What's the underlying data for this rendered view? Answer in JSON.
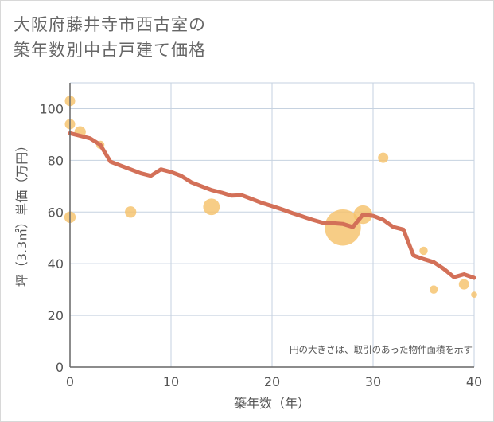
{
  "chart_data": {
    "type": "scatter",
    "title_lines": [
      "大阪府藤井寺市西古室の",
      "築年数別中古戸建て価格"
    ],
    "xlabel": "築年数（年）",
    "ylabel": "坪（3.3㎡）単価（万円）",
    "xlim": [
      0,
      40
    ],
    "ylim": [
      0,
      110
    ],
    "xticks": [
      0,
      10,
      20,
      30,
      40
    ],
    "yticks": [
      0,
      20,
      40,
      60,
      80,
      100
    ],
    "grid": true,
    "note": "円の大きさは、取引のあった物件面積を示す",
    "colors": {
      "bubble": "#f5c26b",
      "line": "#d37058",
      "grid": "#c6d2e0",
      "axis": "#666666"
    },
    "bubbles": [
      {
        "x": 0,
        "y": 103,
        "size": 1
      },
      {
        "x": 0,
        "y": 94,
        "size": 1
      },
      {
        "x": 0,
        "y": 58,
        "size": 1.1
      },
      {
        "x": 1,
        "y": 91,
        "size": 1.1
      },
      {
        "x": 3,
        "y": 86,
        "size": 0.8
      },
      {
        "x": 6,
        "y": 60,
        "size": 1.1
      },
      {
        "x": 14,
        "y": 62,
        "size": 1.6
      },
      {
        "x": 27,
        "y": 54,
        "size": 3.5
      },
      {
        "x": 29,
        "y": 59,
        "size": 1.8
      },
      {
        "x": 31,
        "y": 81,
        "size": 1
      },
      {
        "x": 35,
        "y": 45,
        "size": 0.8
      },
      {
        "x": 36,
        "y": 30,
        "size": 0.8
      },
      {
        "x": 39,
        "y": 32,
        "size": 1
      },
      {
        "x": 40,
        "y": 28,
        "size": 0.6
      }
    ],
    "trend": {
      "x": [
        0,
        1,
        2,
        3,
        4,
        5,
        6,
        7,
        8,
        9,
        10,
        11,
        12,
        13,
        14,
        15,
        16,
        17,
        18,
        19,
        20,
        21,
        22,
        23,
        24,
        25,
        26,
        27,
        28,
        29,
        30,
        31,
        32,
        33,
        34,
        35,
        36,
        37,
        38,
        39,
        40
      ],
      "y": [
        90.5,
        89.5,
        88.5,
        86,
        79.5,
        78,
        76.5,
        75,
        74,
        76.5,
        75.5,
        74,
        71.5,
        70,
        68.5,
        67.5,
        66.3,
        66.5,
        65,
        63.5,
        62.3,
        61,
        59.6,
        58.3,
        57,
        55.9,
        55.7,
        55.4,
        54.2,
        59,
        58.5,
        57,
        54.2,
        53.2,
        43.2,
        41.8,
        40.6,
        38,
        34.8,
        35.9,
        34.5
      ]
    }
  }
}
